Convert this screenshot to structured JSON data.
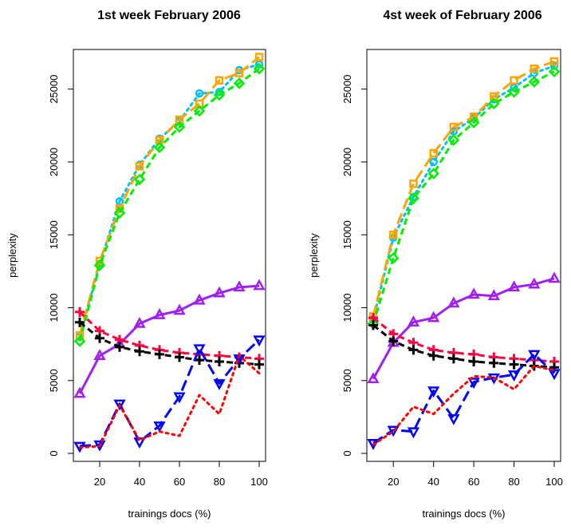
{
  "chart_data": [
    {
      "type": "line",
      "title": "1st week February 2006",
      "xlabel": "trainings docs (%)",
      "ylabel": "perplexity",
      "xlim": [
        10,
        100
      ],
      "ylim": [
        0,
        27500
      ],
      "xticks": [
        20,
        40,
        60,
        80,
        100
      ],
      "yticks": [
        0,
        5000,
        10000,
        15000,
        20000,
        25000
      ],
      "x": [
        10,
        20,
        30,
        40,
        50,
        60,
        70,
        80,
        90,
        100
      ],
      "series": [
        {
          "color": "#00bfff",
          "lty": "dotted",
          "marker": "circle",
          "values": [
            8000,
            13000,
            17300,
            19800,
            21600,
            22800,
            24700,
            24800,
            26300,
            26700
          ]
        },
        {
          "color": "#ffa500",
          "lty": "longdash",
          "marker": "square",
          "values": [
            8100,
            13200,
            16800,
            19700,
            21500,
            22900,
            24000,
            25600,
            26100,
            27200
          ]
        },
        {
          "color": "#00ee00",
          "lty": "dashed",
          "marker": "diamond",
          "values": [
            7700,
            12900,
            16500,
            18800,
            21000,
            22400,
            23500,
            24600,
            25400,
            26400
          ]
        },
        {
          "color": "#a020f0",
          "lty": "solid",
          "marker": "triangle-up",
          "values": [
            4100,
            6700,
            7500,
            8900,
            9500,
            9800,
            10500,
            11000,
            11400,
            11500
          ]
        },
        {
          "color": "#ff0040",
          "lty": "dashed",
          "marker": "plus",
          "values": [
            9700,
            8400,
            7800,
            7400,
            7100,
            6900,
            6800,
            6700,
            6600,
            6500
          ]
        },
        {
          "color": "#000000",
          "lty": "dashed",
          "marker": "plus",
          "values": [
            9000,
            7900,
            7300,
            7000,
            6800,
            6600,
            6400,
            6300,
            6200,
            6100
          ]
        },
        {
          "color": "#0000ff",
          "lty": "longdash",
          "marker": "triangle-down",
          "values": [
            500,
            600,
            3400,
            800,
            1900,
            3900,
            7200,
            4800,
            6500,
            7800
          ]
        },
        {
          "color": "#ff0000",
          "lty": "dotted",
          "marker": "none",
          "values": [
            400,
            500,
            3300,
            900,
            1500,
            1200,
            4000,
            2700,
            6700,
            5500
          ]
        }
      ]
    },
    {
      "type": "line",
      "title": "4st week of February 2006",
      "xlabel": "trainings docs (%)",
      "ylabel": "perplexity",
      "xlim": [
        10,
        100
      ],
      "ylim": [
        0,
        27500
      ],
      "xticks": [
        20,
        40,
        60,
        80,
        100
      ],
      "yticks": [
        0,
        5000,
        10000,
        15000,
        20000,
        25000
      ],
      "x": [
        10,
        20,
        30,
        40,
        50,
        60,
        70,
        80,
        90,
        100
      ],
      "series": [
        {
          "color": "#00bfff",
          "lty": "dotted",
          "marker": "circle",
          "values": [
            9200,
            14800,
            17600,
            20000,
            22100,
            23000,
            24300,
            25100,
            26100,
            26600
          ]
        },
        {
          "color": "#ffa500",
          "lty": "longdash",
          "marker": "square",
          "values": [
            9400,
            15000,
            18500,
            20600,
            22400,
            23100,
            24500,
            25600,
            26400,
            26900
          ]
        },
        {
          "color": "#00ee00",
          "lty": "dashed",
          "marker": "diamond",
          "values": [
            8900,
            13400,
            17500,
            19200,
            21500,
            22700,
            24000,
            24800,
            25500,
            26200
          ]
        },
        {
          "color": "#a020f0",
          "lty": "solid",
          "marker": "triangle-up",
          "values": [
            5100,
            7600,
            9000,
            9300,
            10300,
            10900,
            10800,
            11400,
            11600,
            12000
          ]
        },
        {
          "color": "#ff0040",
          "lty": "dashed",
          "marker": "plus",
          "values": [
            9300,
            8200,
            7600,
            7100,
            6900,
            6800,
            6600,
            6500,
            6400,
            6300
          ]
        },
        {
          "color": "#000000",
          "lty": "dashed",
          "marker": "plus",
          "values": [
            8800,
            7700,
            7100,
            6700,
            6500,
            6300,
            6200,
            6100,
            6000,
            5900
          ]
        },
        {
          "color": "#0000ff",
          "lty": "longdash",
          "marker": "triangle-down",
          "values": [
            700,
            1600,
            1500,
            4300,
            2400,
            4900,
            5200,
            5400,
            6800,
            5500
          ]
        },
        {
          "color": "#ff0000",
          "lty": "dotted",
          "marker": "none",
          "values": [
            600,
            1500,
            3200,
            2700,
            4100,
            5300,
            5200,
            4400,
            6000,
            5700
          ]
        }
      ]
    }
  ]
}
